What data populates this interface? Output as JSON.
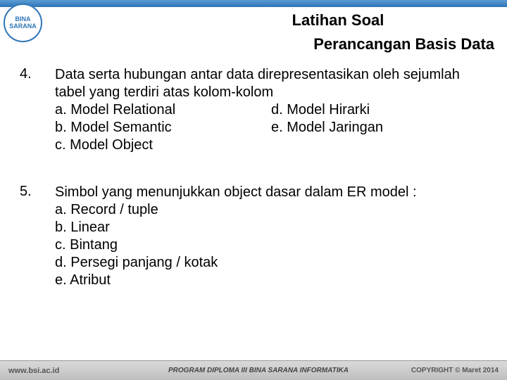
{
  "colors": {
    "accent": "#2e75b6",
    "text": "#000000",
    "footer_bg": "#cfcfcf"
  },
  "logo_text": "BINA SARANA",
  "header": {
    "title1": "Latihan Soal",
    "title2": "Perancangan Basis Data"
  },
  "questions": [
    {
      "num": "4.",
      "text": "Data serta hubungan antar data direpresentasikan oleh sejumlah tabel yang terdiri atas kolom-kolom",
      "two_col": true,
      "left": [
        "a. Model Relational",
        "b. Model Semantic",
        "c. Model Object"
      ],
      "right": [
        "d. Model Hirarki",
        "e. Model Jaringan"
      ]
    },
    {
      "num": "5.",
      "text": "Simbol yang menunjukkan object dasar dalam ER model :",
      "two_col": false,
      "left": [
        "a. Record / tuple",
        "b. Linear",
        "c. Bintang",
        "d. Persegi panjang / kotak",
        "e. Atribut"
      ],
      "right": []
    }
  ],
  "footer": {
    "url": "www.bsi.ac.id",
    "program": "PROGRAM DIPLOMA III BINA SARANA INFORMATIKA",
    "copyright": "COPYRIGHT © Maret 2014"
  }
}
